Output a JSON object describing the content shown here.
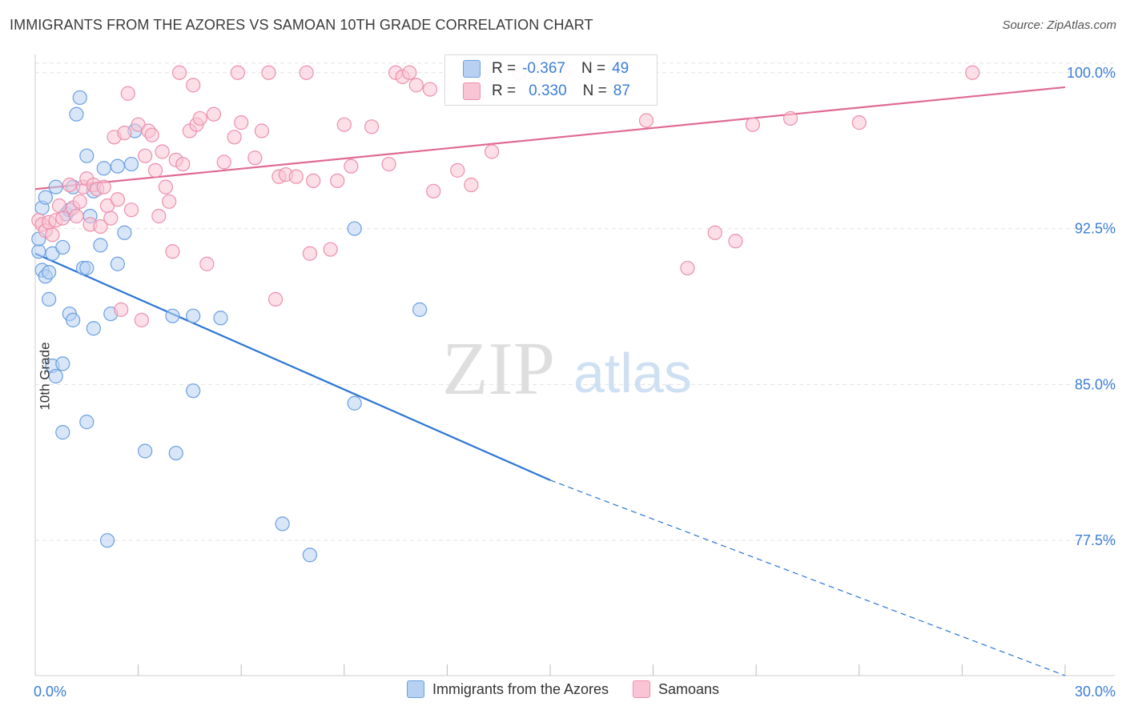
{
  "title": "IMMIGRANTS FROM THE AZORES VS SAMOAN 10TH GRADE CORRELATION CHART",
  "source": "Source: ZipAtlas.com",
  "watermark": {
    "zip": "ZIP",
    "atlas": "atlas"
  },
  "colors": {
    "blue_fill": "#b8d1f2",
    "blue_stroke": "#6a9fe0",
    "blue_line": "#2a74d4",
    "pink_fill": "#f9c4d4",
    "pink_stroke": "#ec8fae",
    "pink_line": "#e06a93",
    "axis_text": "#3b7dd8",
    "grid": "#e3e3e3"
  },
  "stats": {
    "rows": [
      {
        "r_label": "R =",
        "r_value": "-0.367",
        "n_label": "N =",
        "n_value": "49",
        "series": "blue"
      },
      {
        "r_label": "R =",
        "r_value": "0.330",
        "n_label": "N =",
        "n_value": "87",
        "series": "pink"
      }
    ]
  },
  "legend": [
    {
      "label": "Immigrants from the Azores",
      "series": "blue"
    },
    {
      "label": "Samoans",
      "series": "pink"
    }
  ],
  "chart_data": {
    "type": "scatter",
    "ylabel": "10th Grade",
    "xlim": [
      0,
      30
    ],
    "ylim": [
      71,
      100.8
    ],
    "x_tick_labels": [
      {
        "value": 0,
        "label": "0.0%"
      },
      {
        "value": 30,
        "label": "30.0%"
      }
    ],
    "y_tick_labels": [
      {
        "value": 100,
        "label": "100.0%"
      },
      {
        "value": 92.5,
        "label": "92.5%"
      },
      {
        "value": 85,
        "label": "85.0%"
      },
      {
        "value": 77.5,
        "label": "77.5%"
      }
    ],
    "x_minor_ticks": [
      3,
      6,
      9,
      12,
      15,
      18,
      21,
      24,
      27,
      30
    ],
    "grid": true,
    "series": [
      {
        "name": "Immigrants from the Azores",
        "color": "blue",
        "points": [
          [
            0.1,
            91.4
          ],
          [
            0.1,
            92.0
          ],
          [
            0.2,
            93.5
          ],
          [
            0.3,
            94.0
          ],
          [
            0.2,
            90.5
          ],
          [
            0.3,
            90.2
          ],
          [
            0.4,
            90.4
          ],
          [
            0.4,
            89.1
          ],
          [
            0.5,
            91.3
          ],
          [
            0.6,
            94.5
          ],
          [
            0.5,
            85.9
          ],
          [
            0.6,
            85.4
          ],
          [
            0.8,
            86.0
          ],
          [
            0.8,
            82.7
          ],
          [
            0.8,
            91.6
          ],
          [
            0.9,
            93.2
          ],
          [
            1.0,
            93.4
          ],
          [
            1.0,
            88.4
          ],
          [
            1.1,
            88.1
          ],
          [
            1.2,
            98.0
          ],
          [
            1.3,
            98.8
          ],
          [
            1.4,
            90.6
          ],
          [
            1.5,
            90.6
          ],
          [
            1.5,
            96.0
          ],
          [
            1.5,
            83.2
          ],
          [
            1.6,
            93.1
          ],
          [
            1.7,
            94.3
          ],
          [
            1.7,
            87.7
          ],
          [
            1.9,
            91.7
          ],
          [
            2.1,
            77.5
          ],
          [
            2.2,
            88.4
          ],
          [
            2.0,
            95.4
          ],
          [
            2.4,
            90.8
          ],
          [
            2.4,
            95.5
          ],
          [
            2.6,
            92.3
          ],
          [
            2.9,
            97.2
          ],
          [
            3.2,
            81.8
          ],
          [
            4.0,
            88.3
          ],
          [
            4.1,
            81.7
          ],
          [
            4.6,
            84.7
          ],
          [
            4.6,
            88.3
          ],
          [
            5.4,
            88.2
          ],
          [
            7.2,
            78.3
          ],
          [
            8.0,
            76.8
          ],
          [
            9.3,
            92.5
          ],
          [
            9.3,
            84.1
          ],
          [
            11.2,
            88.6
          ],
          [
            1.1,
            94.5
          ],
          [
            2.8,
            95.6
          ]
        ]
      },
      {
        "name": "Samoans",
        "color": "pink",
        "points": [
          [
            0.1,
            92.9
          ],
          [
            0.2,
            92.7
          ],
          [
            0.3,
            92.4
          ],
          [
            0.4,
            92.8
          ],
          [
            0.5,
            92.2
          ],
          [
            0.6,
            92.9
          ],
          [
            0.7,
            93.6
          ],
          [
            0.8,
            93.0
          ],
          [
            1.0,
            94.6
          ],
          [
            1.1,
            93.5
          ],
          [
            1.2,
            93.1
          ],
          [
            1.3,
            93.8
          ],
          [
            1.4,
            94.5
          ],
          [
            1.5,
            94.9
          ],
          [
            1.6,
            92.7
          ],
          [
            1.7,
            94.6
          ],
          [
            1.8,
            94.4
          ],
          [
            1.9,
            92.6
          ],
          [
            2.0,
            94.5
          ],
          [
            2.1,
            93.6
          ],
          [
            2.2,
            93.0
          ],
          [
            2.3,
            96.9
          ],
          [
            2.4,
            93.9
          ],
          [
            2.5,
            88.6
          ],
          [
            2.6,
            97.1
          ],
          [
            2.7,
            99.0
          ],
          [
            2.8,
            93.4
          ],
          [
            3.0,
            97.5
          ],
          [
            3.1,
            88.1
          ],
          [
            3.2,
            96.0
          ],
          [
            3.3,
            97.2
          ],
          [
            3.4,
            97.0
          ],
          [
            3.5,
            95.3
          ],
          [
            3.6,
            93.1
          ],
          [
            3.7,
            96.2
          ],
          [
            3.8,
            94.5
          ],
          [
            3.9,
            93.8
          ],
          [
            4.0,
            91.4
          ],
          [
            4.1,
            95.8
          ],
          [
            4.2,
            100.0
          ],
          [
            4.3,
            95.6
          ],
          [
            4.5,
            97.2
          ],
          [
            4.6,
            99.4
          ],
          [
            4.7,
            97.5
          ],
          [
            4.8,
            97.8
          ],
          [
            5.0,
            90.8
          ],
          [
            5.2,
            98.0
          ],
          [
            5.5,
            95.7
          ],
          [
            5.8,
            96.9
          ],
          [
            5.9,
            100.0
          ],
          [
            6.0,
            97.6
          ],
          [
            6.4,
            95.9
          ],
          [
            6.6,
            97.2
          ],
          [
            6.8,
            100.0
          ],
          [
            7.0,
            89.1
          ],
          [
            7.1,
            95.0
          ],
          [
            7.3,
            95.1
          ],
          [
            7.6,
            95.0
          ],
          [
            7.9,
            100.0
          ],
          [
            8.0,
            91.3
          ],
          [
            8.1,
            94.8
          ],
          [
            8.6,
            91.5
          ],
          [
            8.8,
            94.8
          ],
          [
            9.0,
            97.5
          ],
          [
            9.2,
            95.5
          ],
          [
            9.8,
            97.4
          ],
          [
            10.3,
            95.6
          ],
          [
            10.5,
            100.0
          ],
          [
            10.7,
            99.8
          ],
          [
            10.9,
            100.0
          ],
          [
            11.1,
            99.4
          ],
          [
            11.5,
            99.2
          ],
          [
            11.6,
            94.3
          ],
          [
            12.3,
            95.3
          ],
          [
            12.7,
            94.6
          ],
          [
            13.0,
            100.0
          ],
          [
            13.3,
            96.2
          ],
          [
            14.1,
            100.0
          ],
          [
            15.4,
            100.0
          ],
          [
            17.8,
            97.7
          ],
          [
            19.0,
            90.6
          ],
          [
            19.8,
            92.3
          ],
          [
            20.4,
            91.9
          ],
          [
            20.9,
            97.5
          ],
          [
            22.0,
            97.8
          ],
          [
            24.0,
            97.6
          ],
          [
            27.3,
            100.0
          ]
        ]
      }
    ],
    "trend_lines": [
      {
        "series": "Immigrants from the Azores",
        "x0": 0,
        "y0": 91.3,
        "x1": 15,
        "y1": 80.4,
        "dashed_to_x": 30,
        "dashed_to_y": 71.0
      },
      {
        "series": "Samoans",
        "x0": 0,
        "y0": 94.4,
        "x1": 30,
        "y1": 99.3
      }
    ]
  }
}
